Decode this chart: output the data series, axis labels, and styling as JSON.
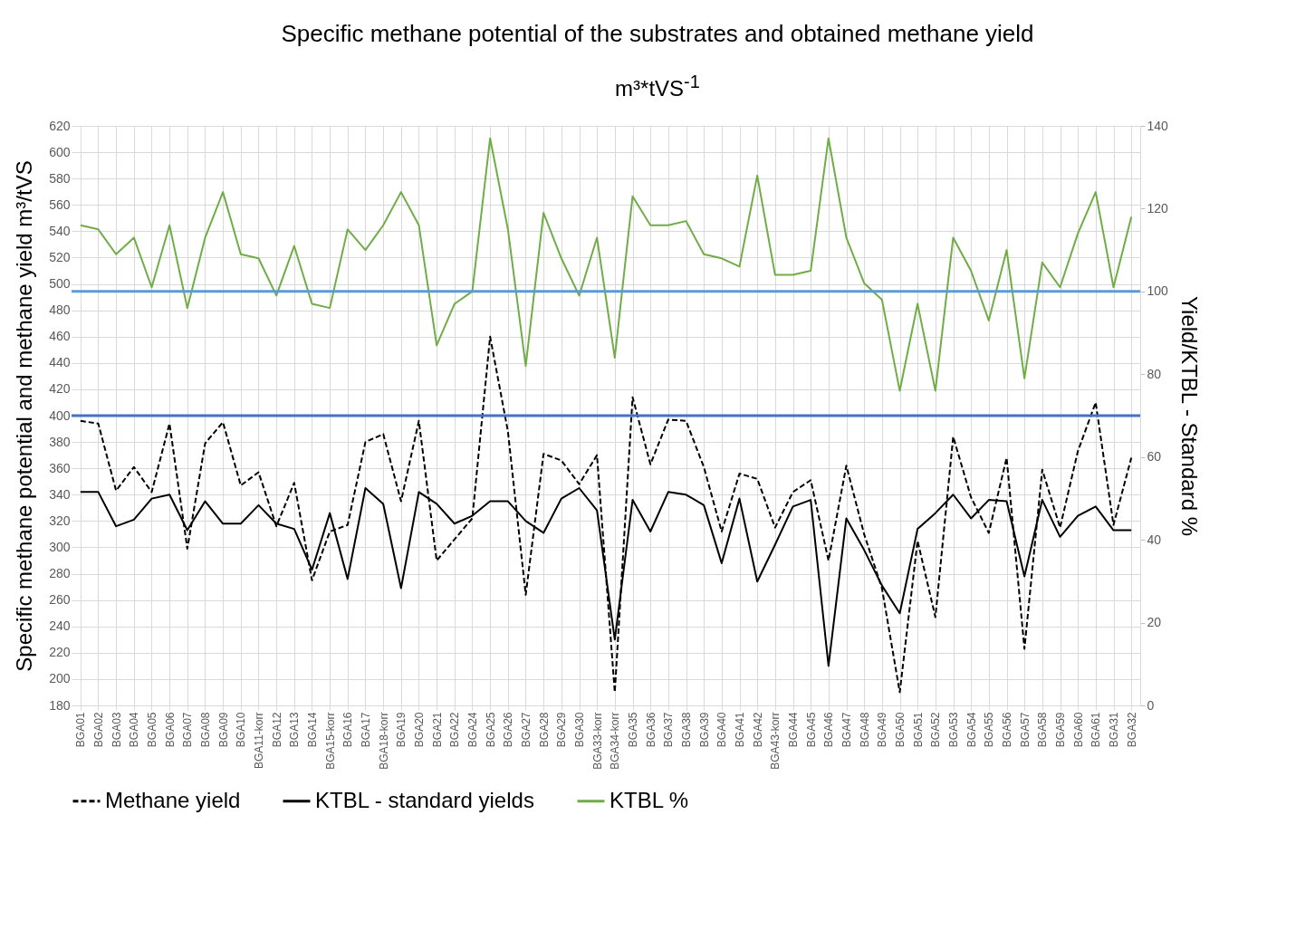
{
  "chart_data": {
    "type": "line",
    "title": "Specific methane potential of the substrates and obtained methane yield",
    "subtitle": "m³*tVS$^{-1}$",
    "ylabel": "Specific methane potential and methane yield m³/tVS",
    "y2label": "Yield/KTBL - Standard %",
    "categories": [
      "BGA01",
      "BGA02",
      "BGA03",
      "BGA04",
      "BGA05",
      "BGA06",
      "BGA07",
      "BGA08",
      "BGA09",
      "BGA10",
      "BGA11-korr",
      "BGA12",
      "BGA13",
      "BGA14",
      "BGA15-korr",
      "BGA16",
      "BGA17",
      "BGA18-korr",
      "BGA19",
      "BGA20",
      "BGA21",
      "BGA22",
      "BGA24",
      "BGA25",
      "BGA26",
      "BGA27",
      "BGA28",
      "BGA29",
      "BGA30",
      "BGA33-korr",
      "BGA34-korr",
      "BGA35",
      "BGA36",
      "BGA37",
      "BGA38",
      "BGA39",
      "BGA40",
      "BGA41",
      "BGA42",
      "BGA43-korr",
      "BGA44",
      "BGA45",
      "BGA46",
      "BGA47",
      "BGA48",
      "BGA49",
      "BGA50",
      "BGA51",
      "BGA52",
      "BGA53",
      "BGA54",
      "BGA55",
      "BGA56",
      "BGA57",
      "BGA58",
      "BGA59",
      "BGA60",
      "BGA61",
      "BGA31",
      "BGA32"
    ],
    "series": [
      {
        "name": "Methane yield",
        "color": "#000000",
        "line_style": "dashed",
        "values": [
          396,
          394,
          343,
          361,
          342,
          394,
          299,
          379,
          395,
          347,
          357,
          316,
          349,
          275,
          312,
          317,
          380,
          386,
          335,
          396,
          290,
          306,
          322,
          460,
          388,
          264,
          371,
          366,
          348,
          370,
          190,
          414,
          363,
          397,
          396,
          361,
          312,
          356,
          352,
          315,
          342,
          351,
          290,
          362,
          310,
          269,
          190,
          305,
          247,
          384,
          338,
          311,
          368,
          223,
          359,
          315,
          373,
          410,
          317,
          368
        ]
      },
      {
        "name": "KTBL - standard yields",
        "color": "#000000",
        "line_style": "solid",
        "values": [
          342,
          342,
          316,
          321,
          337,
          340,
          313,
          335,
          318,
          318,
          332,
          318,
          314,
          283,
          326,
          276,
          345,
          333,
          269,
          342,
          333,
          318,
          324,
          335,
          335,
          320,
          311,
          337,
          345,
          328,
          230,
          336,
          312,
          342,
          340,
          332,
          288,
          337,
          274,
          302,
          331,
          336,
          210,
          322,
          298,
          271,
          250,
          314,
          326,
          340,
          322,
          336,
          335,
          278,
          336,
          308,
          324,
          331,
          313,
          313
        ]
      },
      {
        "name": "KTBL %",
        "color": "#70ad47",
        "line_style": "solid",
        "axis": "y2",
        "values": [
          116,
          115,
          109,
          113,
          101,
          116,
          96,
          113,
          124,
          109,
          108,
          99,
          111,
          97,
          96,
          115,
          110,
          116,
          124,
          116,
          87,
          97,
          100,
          137,
          115,
          82,
          119,
          108,
          99,
          113,
          84,
          123,
          116,
          116,
          117,
          109,
          108,
          106,
          128,
          104,
          104,
          105,
          137,
          113,
          102,
          98,
          76,
          97,
          76,
          113,
          105,
          93,
          110,
          79,
          107,
          101,
          114,
          124,
          101,
          118
        ]
      }
    ],
    "ylim": [
      180,
      620
    ],
    "yticks": [
      180,
      200,
      220,
      240,
      260,
      280,
      300,
      320,
      340,
      360,
      380,
      400,
      420,
      440,
      460,
      480,
      500,
      520,
      540,
      560,
      580,
      600,
      620
    ],
    "y2lim": [
      0,
      140
    ],
    "y2ticks": [
      0,
      20,
      40,
      60,
      80,
      100,
      120,
      140
    ],
    "ref_lines": [
      {
        "axis": "y",
        "value": 400,
        "color": "#4472c4"
      },
      {
        "axis": "y2",
        "value": 100,
        "color": "#5b9bd5"
      }
    ],
    "grid": true,
    "legend": "bottom"
  }
}
